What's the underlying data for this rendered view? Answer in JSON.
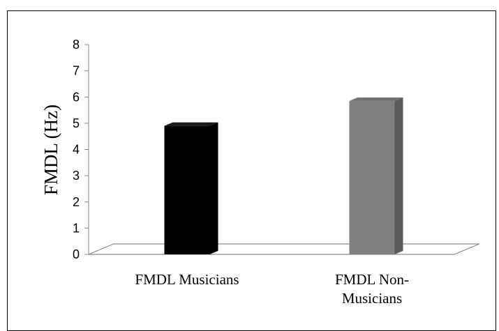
{
  "chart_data": {
    "type": "bar",
    "title": "",
    "xlabel": "",
    "ylabel": "FMDL (Hz)",
    "ylim": [
      0,
      8
    ],
    "yticks": [
      0,
      1,
      2,
      3,
      4,
      5,
      6,
      7,
      8
    ],
    "categories": [
      [
        "FMDL Musicians"
      ],
      [
        "FMDL Non-",
        "Musicians"
      ]
    ],
    "values": [
      4.9,
      5.85
    ],
    "colors": [
      "#000000",
      "#808080"
    ],
    "side_colors": [
      "#000000",
      "#5a5a5a"
    ],
    "top_colors": [
      "#1a1a1a",
      "#707070"
    ],
    "grid": false,
    "legend": "none"
  }
}
